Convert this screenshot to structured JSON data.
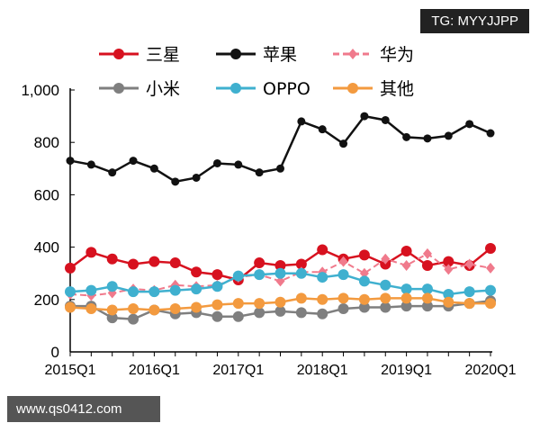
{
  "watermarks": {
    "top": "TG: MYYJJPP",
    "bottom": "www.qs0412.com"
  },
  "chart_data": {
    "type": "line",
    "title": "",
    "xlabel": "",
    "ylabel": "",
    "ylim": [
      0,
      1000
    ],
    "yticks": [
      "0",
      "200",
      "400",
      "600",
      "800",
      "1,000"
    ],
    "x": [
      "2015Q1",
      "2015Q2",
      "2015Q3",
      "2015Q4",
      "2016Q1",
      "2016Q2",
      "2016Q3",
      "2016Q4",
      "2017Q1",
      "2017Q2",
      "2017Q3",
      "2017Q4",
      "2018Q1",
      "2018Q2",
      "2018Q3",
      "2018Q4",
      "2019Q1",
      "2019Q2",
      "2019Q3",
      "2019Q4",
      "2020Q1"
    ],
    "xtick_labels": [
      "2015Q1",
      "2016Q1",
      "2017Q1",
      "2018Q1",
      "2019Q1",
      "2020Q1"
    ],
    "legend_position": "top",
    "grid": false,
    "series": [
      {
        "name": "三星",
        "color": "#d7111f",
        "dash": false,
        "marker": "circle",
        "values": [
          320,
          380,
          355,
          335,
          345,
          340,
          305,
          295,
          275,
          340,
          330,
          335,
          390,
          355,
          370,
          335,
          385,
          330,
          345,
          330,
          395
        ]
      },
      {
        "name": "苹果",
        "color": "#111111",
        "dash": false,
        "marker": "circle",
        "values": [
          730,
          715,
          685,
          730,
          700,
          650,
          665,
          720,
          715,
          685,
          700,
          880,
          850,
          795,
          900,
          885,
          820,
          815,
          825,
          870,
          835
        ]
      },
      {
        "name": "华为",
        "color": "#f07a8c",
        "dash": true,
        "marker": "diamond",
        "values": [
          220,
          215,
          225,
          240,
          235,
          255,
          250,
          255,
          285,
          295,
          270,
          305,
          305,
          345,
          300,
          355,
          330,
          375,
          315,
          335,
          320
        ]
      },
      {
        "name": "小米",
        "color": "#7f7f7f",
        "dash": false,
        "marker": "circle",
        "values": [
          175,
          175,
          130,
          125,
          160,
          145,
          150,
          135,
          135,
          150,
          155,
          150,
          145,
          165,
          170,
          170,
          175,
          175,
          175,
          185,
          195
        ]
      },
      {
        "name": "OPPO",
        "color": "#3fb0cf",
        "dash": false,
        "marker": "circle",
        "values": [
          230,
          235,
          250,
          230,
          230,
          235,
          240,
          250,
          290,
          295,
          300,
          300,
          285,
          295,
          270,
          255,
          240,
          240,
          220,
          230,
          235
        ]
      },
      {
        "name": "其他",
        "color": "#f39a3f",
        "dash": false,
        "marker": "circle",
        "values": [
          170,
          165,
          160,
          165,
          160,
          165,
          170,
          180,
          185,
          185,
          190,
          205,
          200,
          205,
          200,
          205,
          205,
          205,
          190,
          185,
          185
        ]
      }
    ]
  }
}
